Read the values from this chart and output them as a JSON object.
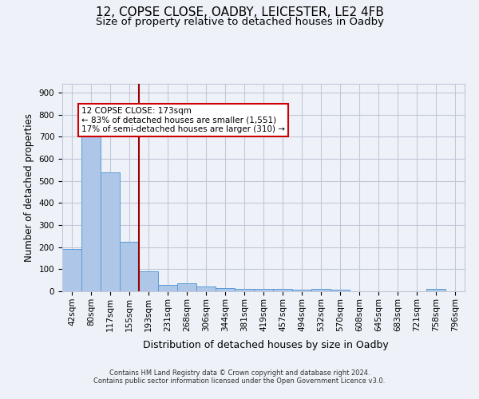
{
  "title_line1": "12, COPSE CLOSE, OADBY, LEICESTER, LE2 4FB",
  "title_line2": "Size of property relative to detached houses in Oadby",
  "xlabel": "Distribution of detached houses by size in Oadby",
  "ylabel": "Number of detached properties",
  "categories": [
    "42sqm",
    "80sqm",
    "117sqm",
    "155sqm",
    "193sqm",
    "231sqm",
    "268sqm",
    "306sqm",
    "344sqm",
    "381sqm",
    "419sqm",
    "457sqm",
    "494sqm",
    "532sqm",
    "570sqm",
    "608sqm",
    "645sqm",
    "683sqm",
    "721sqm",
    "758sqm",
    "796sqm"
  ],
  "values": [
    190,
    707,
    540,
    225,
    92,
    28,
    37,
    23,
    15,
    12,
    12,
    10,
    8,
    10,
    7,
    0,
    0,
    0,
    0,
    10,
    0
  ],
  "bar_color": "#aec6e8",
  "bar_edge_color": "#5b9bd5",
  "vline_x_index": 3.5,
  "vline_color": "#990000",
  "annotation_line1": "12 COPSE CLOSE: 173sqm",
  "annotation_line2": "← 83% of detached houses are smaller (1,551)",
  "annotation_line3": "17% of semi-detached houses are larger (310) →",
  "annotation_box_color": "#ffffff",
  "annotation_box_edge_color": "#cc0000",
  "ylim": [
    0,
    940
  ],
  "yticks": [
    0,
    100,
    200,
    300,
    400,
    500,
    600,
    700,
    800,
    900
  ],
  "footer_line1": "Contains HM Land Registry data © Crown copyright and database right 2024.",
  "footer_line2": "Contains public sector information licensed under the Open Government Licence v3.0.",
  "bg_color": "#eef2f8",
  "plot_bg_color": "#eef2f8",
  "grid_color": "#c0c8d8",
  "title_fontsize": 11,
  "subtitle_fontsize": 9.5,
  "ylabel_fontsize": 8.5,
  "xlabel_fontsize": 9,
  "tick_fontsize": 7.5,
  "footer_fontsize": 6,
  "annotation_fontsize": 7.5
}
